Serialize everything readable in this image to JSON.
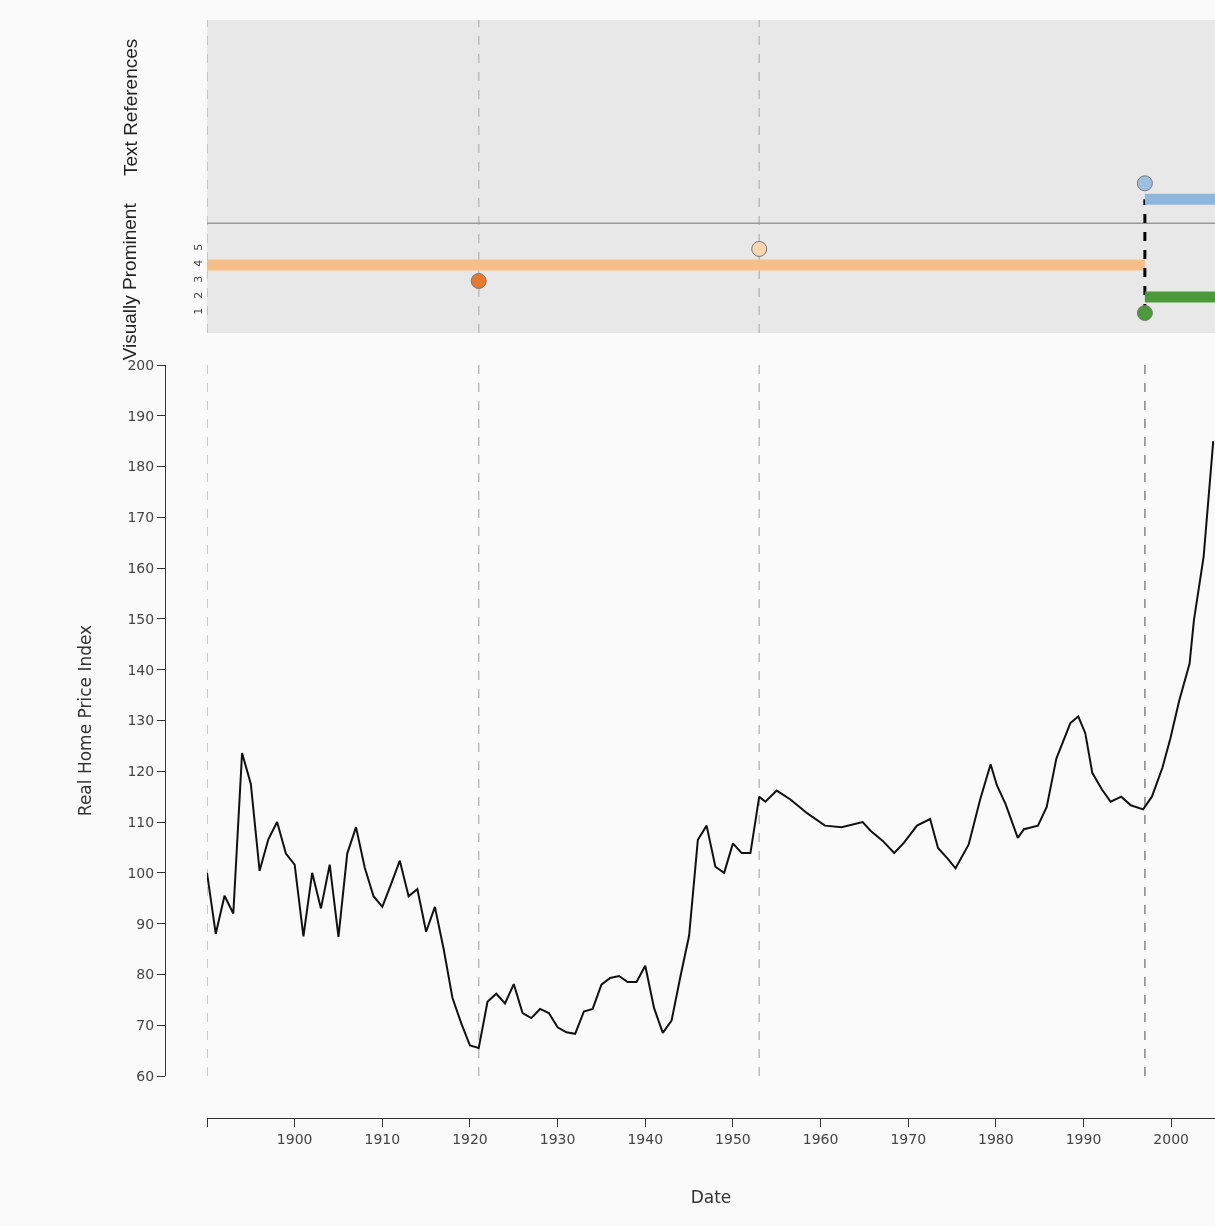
{
  "chart_data": [
    {
      "type": "scatter",
      "ylabel": "Visually Prominent",
      "annotations": [
        "Text References"
      ],
      "xlim": [
        1890,
        2005
      ],
      "ylim": [
        -0.25,
        19.3
      ],
      "yticks": [
        1,
        2,
        3,
        4,
        5
      ],
      "tick_labels": "y",
      "grid": false,
      "ref_lines": [
        {
          "axis": "x",
          "value": 1890,
          "color": "#bbbbbb",
          "line_style": "dashed"
        },
        {
          "axis": "x",
          "value": 1921,
          "color": "#bbbbbb",
          "line_style": "dashed"
        },
        {
          "axis": "x",
          "value": 1953,
          "color": "#bbbbbb",
          "line_style": "dashed"
        },
        {
          "axis": "y",
          "value": 6.6,
          "color": "#999999",
          "line_style": "solid"
        }
      ],
      "series": [
        {
          "type": "line",
          "x": [
            1890,
            1997
          ],
          "values": [
            4,
            4
          ],
          "color": "#f5bf87",
          "line_style": "solid"
        },
        {
          "type": "line",
          "x": [
            1997,
            1997
          ],
          "values": [
            1,
            8.1
          ],
          "color": "#000000",
          "line_style": "dashed"
        },
        {
          "type": "line",
          "x": [
            1997,
            2005
          ],
          "values": [
            2,
            2
          ],
          "color": "#4a9a3a",
          "line_style": "solid"
        },
        {
          "type": "line",
          "x": [
            1997,
            2005
          ],
          "values": [
            8.1,
            8.1
          ],
          "color": "#8fb7de",
          "line_style": "solid"
        },
        {
          "type": "scatter",
          "x": [
            1921
          ],
          "values": [
            3
          ],
          "color": "#e8782a",
          "marker": "circle"
        },
        {
          "type": "scatter",
          "x": [
            1953
          ],
          "values": [
            5
          ],
          "color": "#f9d5b0",
          "marker": "circle"
        },
        {
          "type": "scatter",
          "x": [
            1997
          ],
          "values": [
            1
          ],
          "color": "#4a9a3a",
          "marker": "circle"
        },
        {
          "type": "scatter",
          "x": [
            1997
          ],
          "values": [
            9.1
          ],
          "color": "#9dc0e0",
          "marker": "circle"
        }
      ]
    },
    {
      "type": "line",
      "xlabel": "Date",
      "ylabel": "Real Home Price Index",
      "xlim": [
        1890,
        2005
      ],
      "ylim": [
        60,
        200
      ],
      "xticks": [
        {
          "value": 1890,
          "label": null
        },
        1900,
        1910,
        1920,
        1930,
        1940,
        1950,
        1960,
        1970,
        1980,
        1990,
        2000
      ],
      "yticks": [
        60,
        70,
        80,
        90,
        100,
        110,
        120,
        130,
        140,
        150,
        160,
        170,
        180,
        190,
        200
      ],
      "grid": false,
      "marker": "none",
      "line_style": "solid",
      "ref_lines": [
        {
          "axis": "x",
          "value": 1890,
          "color": "#bbbbbb",
          "line_style": "dashed"
        },
        {
          "axis": "x",
          "value": 1921,
          "color": "#bbbbbb",
          "line_style": "dashed"
        },
        {
          "axis": "x",
          "value": 1953,
          "color": "#bbbbbb",
          "line_style": "dashed"
        },
        {
          "axis": "x",
          "value": 1997,
          "color": "#888888",
          "line_style": "dashed"
        }
      ],
      "series": [
        {
          "color": "#111111",
          "x": [
            1890,
            1891,
            1892,
            1893,
            1894,
            1895,
            1896,
            1897,
            1898,
            1899,
            1900,
            1901,
            1902,
            1903,
            1904,
            1905,
            1906,
            1907,
            1908,
            1909,
            1910,
            1911,
            1912,
            1913,
            1914,
            1915,
            1916,
            1917,
            1918,
            1919,
            1920,
            1921,
            1922,
            1923,
            1924,
            1925,
            1926,
            1927,
            1928,
            1929,
            1930,
            1931,
            1932,
            1933,
            1934,
            1935,
            1936,
            1937,
            1938,
            1939,
            1940,
            1941,
            1942,
            1943,
            1944,
            1945,
            1946,
            1947,
            1948,
            1949,
            1950,
            1951,
            1952,
            1953,
            1953.7,
            1955,
            1956.6,
            1958.5,
            1960.5,
            1962.4,
            1964.8,
            1965.7,
            1967.1,
            1968.4,
            1969.5,
            1971,
            1972.5,
            1973.4,
            1974.5,
            1975.4,
            1976.9,
            1978.2,
            1979.4,
            1980.1,
            1981.1,
            1982.5,
            1983.2,
            1984.8,
            1985.8,
            1986.9,
            1988.5,
            1989.4,
            1990.2,
            1991,
            1992.1,
            1993.1,
            1994.3,
            1995.4,
            1996.8,
            1997.8,
            1999,
            1999.9,
            2000.9,
            2002.1,
            2002.6,
            2003.7,
            2004.8
          ],
          "values": [
            100,
            88,
            95.5,
            92,
            123.6,
            117.5,
            100.4,
            106.6,
            110,
            103.8,
            101.6,
            87.5,
            100,
            93,
            101.6,
            87.4,
            103.8,
            109,
            101,
            95.4,
            93.3,
            97.8,
            102.4,
            95.4,
            96.8,
            88.4,
            93.3,
            85,
            75.4,
            70.4,
            66,
            65.5,
            74.6,
            76.2,
            74.3,
            78.1,
            72.4,
            71.4,
            73.2,
            72.4,
            69.6,
            68.6,
            68.3,
            72.7,
            73.2,
            78,
            79.3,
            79.7,
            78.5,
            78.5,
            81.7,
            73.4,
            68.5,
            70.9,
            79.5,
            87.6,
            106.5,
            109.3,
            101.2,
            100,
            105.8,
            103.9,
            103.9,
            115,
            114,
            116.2,
            114.4,
            111.7,
            109.3,
            109,
            110,
            108.3,
            106.3,
            103.9,
            105.9,
            109.3,
            110.6,
            104.9,
            102.8,
            100.9,
            105.6,
            114.4,
            121.4,
            117.3,
            113.6,
            106.9,
            108.6,
            109.3,
            113,
            122.5,
            129.5,
            130.8,
            127.5,
            119.7,
            116.4,
            114,
            115,
            113.3,
            112.5,
            115,
            120.7,
            126.4,
            133.8,
            141.2,
            149.8,
            162.2,
            185
          ]
        }
      ]
    }
  ]
}
